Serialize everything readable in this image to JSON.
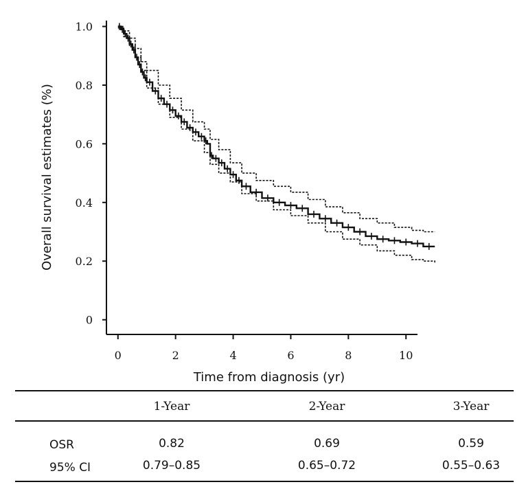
{
  "chart_data": {
    "type": "line",
    "xlabel": "Time from diagnosis (yr)",
    "ylabel": "Overall survival estimates (%)",
    "x_ticks": [
      "0",
      "2",
      "4",
      "6",
      "8",
      "10"
    ],
    "y_ticks": [
      "0",
      "0.2",
      "0.4",
      "0.6",
      "0.8",
      "1.0"
    ],
    "xlim": [
      -0.4,
      10.4
    ],
    "ylim": [
      -0.05,
      1.02
    ],
    "grid": false,
    "censor_marks": true,
    "series": [
      {
        "role": "estimate",
        "line_style": "solid",
        "x": [
          0,
          0.1,
          0.2,
          0.3,
          0.4,
          0.5,
          0.6,
          0.7,
          0.8,
          0.9,
          1.0,
          1.2,
          1.4,
          1.6,
          1.8,
          2.0,
          2.2,
          2.4,
          2.6,
          2.8,
          3.0,
          3.1,
          3.2,
          3.3,
          3.5,
          3.7,
          3.9,
          4.1,
          4.3,
          4.6,
          5.0,
          5.4,
          5.8,
          6.2,
          6.6,
          7.0,
          7.4,
          7.8,
          8.2,
          8.6,
          9.0,
          9.4,
          9.8,
          10.2,
          10.6,
          11.0
        ],
        "y": [
          1.0,
          0.99,
          0.975,
          0.96,
          0.94,
          0.92,
          0.895,
          0.87,
          0.845,
          0.825,
          0.81,
          0.78,
          0.755,
          0.735,
          0.715,
          0.695,
          0.675,
          0.655,
          0.64,
          0.625,
          0.61,
          0.6,
          0.56,
          0.55,
          0.535,
          0.515,
          0.495,
          0.475,
          0.455,
          0.435,
          0.415,
          0.4,
          0.39,
          0.38,
          0.36,
          0.345,
          0.33,
          0.315,
          0.3,
          0.285,
          0.275,
          0.27,
          0.265,
          0.26,
          0.25,
          0.25
        ]
      },
      {
        "role": "upper-95-CI",
        "line_style": "dashed",
        "x": [
          0,
          0.2,
          0.4,
          0.6,
          0.8,
          1.0,
          1.4,
          1.8,
          2.2,
          2.6,
          3.0,
          3.2,
          3.5,
          3.9,
          4.3,
          4.8,
          5.4,
          6.0,
          6.6,
          7.2,
          7.8,
          8.4,
          9.0,
          9.6,
          10.2,
          10.6,
          11.0
        ],
        "y": [
          1.0,
          0.985,
          0.96,
          0.925,
          0.88,
          0.85,
          0.8,
          0.755,
          0.715,
          0.675,
          0.65,
          0.615,
          0.58,
          0.535,
          0.5,
          0.475,
          0.455,
          0.435,
          0.41,
          0.385,
          0.365,
          0.345,
          0.33,
          0.315,
          0.305,
          0.3,
          0.3
        ]
      },
      {
        "role": "lower-95-CI",
        "line_style": "dashed",
        "x": [
          0,
          0.2,
          0.4,
          0.6,
          0.8,
          1.0,
          1.4,
          1.8,
          2.2,
          2.6,
          3.0,
          3.2,
          3.5,
          3.9,
          4.3,
          4.8,
          5.4,
          6.0,
          6.6,
          7.2,
          7.8,
          8.4,
          9.0,
          9.6,
          10.2,
          10.6,
          11.0
        ],
        "y": [
          0.995,
          0.965,
          0.935,
          0.895,
          0.85,
          0.79,
          0.735,
          0.69,
          0.65,
          0.61,
          0.57,
          0.53,
          0.5,
          0.47,
          0.43,
          0.405,
          0.375,
          0.355,
          0.33,
          0.3,
          0.275,
          0.255,
          0.235,
          0.22,
          0.205,
          0.2,
          0.195
        ]
      }
    ],
    "censor_x": [
      0.05,
      0.15,
      0.25,
      0.35,
      0.45,
      0.55,
      0.65,
      0.75,
      0.85,
      0.95,
      1.1,
      1.3,
      1.5,
      1.7,
      1.9,
      2.1,
      2.3,
      2.5,
      2.7,
      2.9,
      3.05,
      3.25,
      3.4,
      3.6,
      3.8,
      4.0,
      4.2,
      4.45,
      4.8,
      5.2,
      5.6,
      6.0,
      6.4,
      6.8,
      7.2,
      7.6,
      8.0,
      8.4,
      8.8,
      9.2,
      9.6,
      10.0,
      10.4,
      10.8
    ]
  },
  "summary_table": {
    "columns": [
      "",
      "1-Year",
      "2-Year",
      "3-Year"
    ],
    "rows": [
      {
        "label": "OSR",
        "values": [
          "0.82",
          "0.69",
          "0.59"
        ]
      },
      {
        "label": "95% CI",
        "values": [
          "0.79–0.85",
          "0.65–0.72",
          "0.55–0.63"
        ]
      }
    ]
  }
}
